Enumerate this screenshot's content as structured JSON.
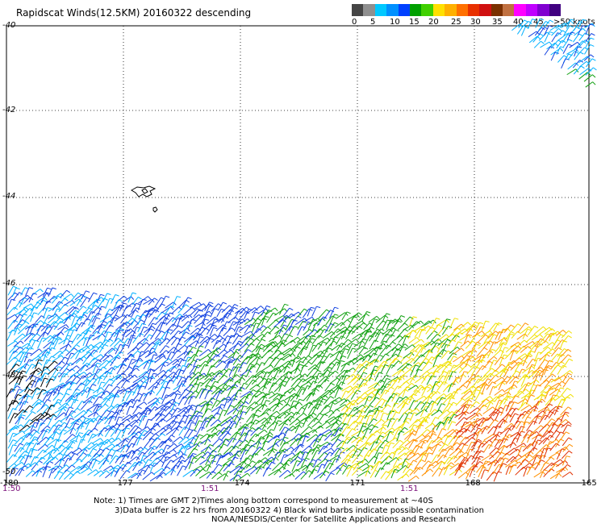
{
  "title": "Rapidscat Winds(12.5KM) 20160322 descending",
  "colorbar": {
    "colors": [
      "#454545",
      "#8f8f8f",
      "#00c8ff",
      "#0090ff",
      "#0040ff",
      "#00a000",
      "#40d000",
      "#ffe000",
      "#ffb000",
      "#ff7000",
      "#e83000",
      "#d01010",
      "#7a3000",
      "#c07040",
      "#ff00ff",
      "#c000ff",
      "#8000d0",
      "#400080"
    ],
    "labels": [
      "0",
      "5",
      "10",
      "15",
      "20",
      "25",
      "30",
      "35",
      "40",
      "45",
      ">50 knots"
    ],
    "unit": "knots"
  },
  "map": {
    "lat_labels": [
      "-40",
      "-42",
      "-44",
      "-46",
      "-48",
      "-50"
    ],
    "lon_labels": [
      "-180",
      "-177",
      "-174",
      "-171",
      "-168",
      "-165"
    ],
    "time_labels": [
      "1:50",
      "1:51",
      "1:51"
    ],
    "notes": [
      "Note: 1) Times are GMT 2)Times along bottom correspond to measurement at ~40S",
      "3)Data buffer is 22 hrs from 20160322 4) Black wind barbs indicate possible contamination",
      "NOAA/NESDIS/Center for Satellite Applications and Research"
    ],
    "speed_regions": [
      {
        "name": "west-lightblue",
        "color": "#00b0ff"
      },
      {
        "name": "mid-blue",
        "color": "#1040e0"
      },
      {
        "name": "green",
        "color": "#10a010"
      },
      {
        "name": "yellow",
        "color": "#f0e000"
      },
      {
        "name": "orange",
        "color": "#ff9000"
      },
      {
        "name": "red",
        "color": "#e03000"
      },
      {
        "name": "contaminated",
        "color": "#000000"
      }
    ]
  }
}
